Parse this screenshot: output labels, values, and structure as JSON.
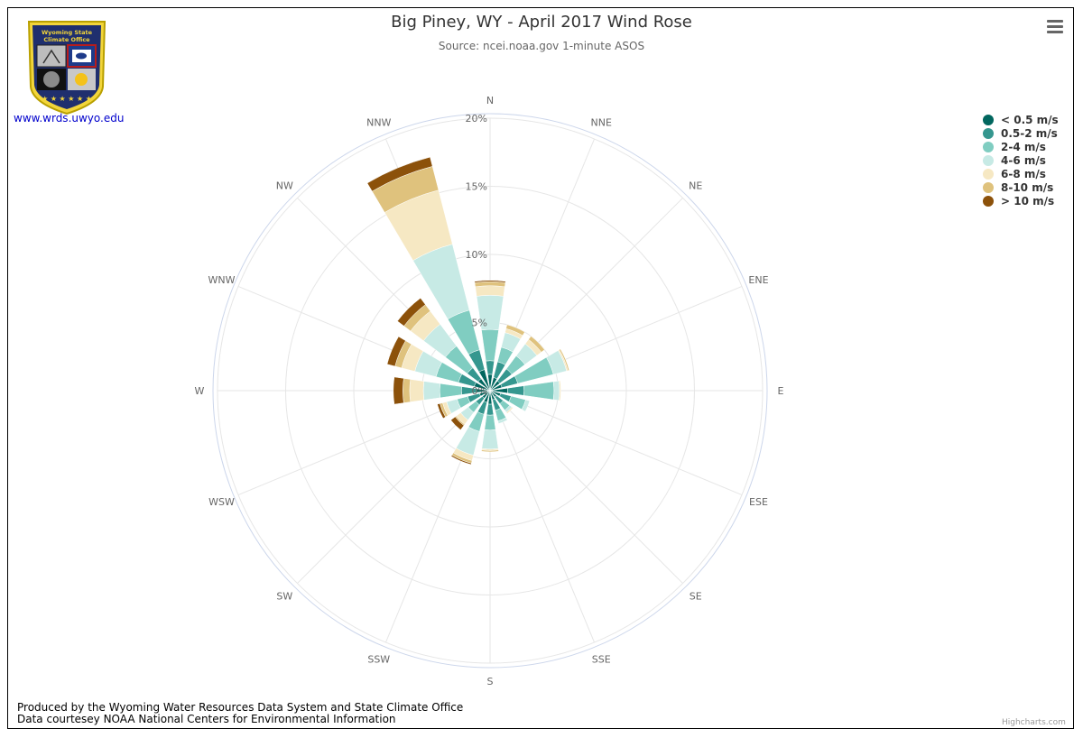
{
  "chart_title": "Big Piney, WY - April 2017 Wind Rose",
  "chart_subtitle": "Source: ncei.noaa.gov 1-minute ASOS",
  "logo": {
    "banner_line1": "Wyoming State",
    "banner_line2": "Climate Office",
    "link_text": "www.wrds.uwyo.edu"
  },
  "menu_icon": "hamburger-menu-icon",
  "footer_line1": "Produced by the Wyoming Water Resources Data System and State Climate Office",
  "footer_line2": "Data courtesey NOAA National Centers for Environmental Information",
  "credits": "Highcharts.com",
  "chart_data": {
    "type": "bar",
    "polar": true,
    "stacked": true,
    "title": "Big Piney, WY - April 2017 Wind Rose",
    "subtitle": "Source: ncei.noaa.gov 1-minute ASOS",
    "categories": [
      "N",
      "NNE",
      "NE",
      "ENE",
      "E",
      "ESE",
      "SE",
      "SSE",
      "S",
      "SSW",
      "SW",
      "WSW",
      "W",
      "WNW",
      "NW",
      "NNW"
    ],
    "radial_ticks": [
      "0%",
      "5%",
      "10%",
      "15%",
      "20%"
    ],
    "radial_tick_values": [
      0,
      5,
      10,
      15,
      20
    ],
    "ylim": [
      0,
      20
    ],
    "legend_position": "top-right",
    "series": [
      {
        "name": "< 0.5 m/s",
        "color": "#01665e",
        "values": [
          1.2,
          1.0,
          0.9,
          0.9,
          1.3,
          0.8,
          0.6,
          0.7,
          1.0,
          0.9,
          0.7,
          0.8,
          1.0,
          1.2,
          1.1,
          1.6
        ]
      },
      {
        "name": "0.5-2 m/s",
        "color": "#35978f",
        "values": [
          1.0,
          1.2,
          1.1,
          1.2,
          1.2,
          0.8,
          0.6,
          0.8,
          0.8,
          0.9,
          0.6,
          0.9,
          1.1,
          1.2,
          1.0,
          1.5
        ]
      },
      {
        "name": "2-4 m/s",
        "color": "#80cdc1",
        "values": [
          2.3,
          1.1,
          1.2,
          2.7,
          2.2,
          1.1,
          0.6,
          0.8,
          1.1,
          1.3,
          0.7,
          0.8,
          1.6,
          1.7,
          2.0,
          3.0
        ]
      },
      {
        "name": "4-6 m/s",
        "color": "#c7eae5",
        "values": [
          2.5,
          1.1,
          1.1,
          1.0,
          0.4,
          0.3,
          0.2,
          0.2,
          1.4,
          1.8,
          0.7,
          0.8,
          1.2,
          1.6,
          2.0,
          5.0
        ]
      },
      {
        "name": "6-8 m/s",
        "color": "#f6e8c3",
        "values": [
          0.7,
          0.3,
          0.4,
          0.1,
          0.1,
          0.0,
          0.1,
          0.0,
          0.1,
          0.4,
          0.4,
          0.3,
          1.0,
          1.0,
          1.2,
          4.1
        ]
      },
      {
        "name": "8-10 m/s",
        "color": "#dfc27d",
        "values": [
          0.3,
          0.3,
          0.3,
          0.1,
          0.0,
          0.0,
          0.0,
          0.0,
          0.1,
          0.2,
          0.1,
          0.2,
          0.5,
          0.5,
          0.6,
          1.8
        ]
      },
      {
        "name": "> 10 m/s",
        "color": "#8c510a",
        "values": [
          0.1,
          0.0,
          0.0,
          0.0,
          0.0,
          0.0,
          0.0,
          0.0,
          0.0,
          0.1,
          0.4,
          0.2,
          0.7,
          0.6,
          0.6,
          0.7
        ]
      }
    ]
  }
}
